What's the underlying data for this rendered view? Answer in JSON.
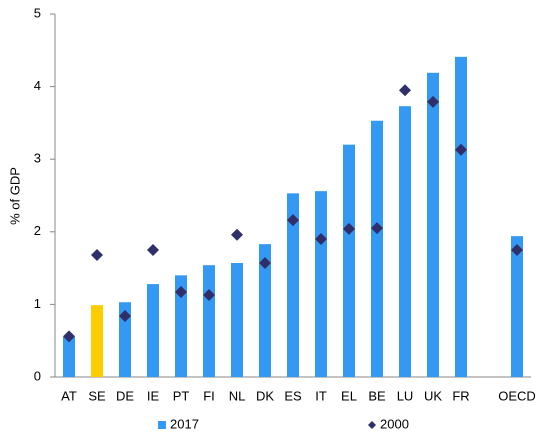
{
  "chart_data": {
    "type": "bar-dot",
    "y_label": "% of GDP",
    "categories": [
      "AT",
      "SE",
      "DE",
      "IE",
      "PT",
      "FI",
      "NL",
      "DK",
      "ES",
      "IT",
      "EL",
      "BE",
      "LU",
      "UK",
      "FR",
      null,
      "OECD"
    ],
    "series": [
      {
        "name": "2017",
        "type": "bar",
        "color": "#3399f3",
        "colors": [
          "#3399f3",
          "#ffcc00",
          "#3399f3",
          "#3399f3",
          "#3399f3",
          "#3399f3",
          "#3399f3",
          "#3399f3",
          "#3399f3",
          "#3399f3",
          "#3399f3",
          "#3399f3",
          "#3399f3",
          "#3399f3",
          "#3399f3",
          null,
          "#3399f3"
        ],
        "values": [
          0.55,
          0.99,
          1.03,
          1.28,
          1.4,
          1.54,
          1.57,
          1.83,
          2.53,
          2.56,
          3.2,
          3.53,
          3.73,
          4.19,
          4.41,
          null,
          1.94
        ]
      },
      {
        "name": "2000",
        "type": "diamond",
        "color": "#2e2f6b",
        "values": [
          0.56,
          1.68,
          0.84,
          1.75,
          1.17,
          1.13,
          1.96,
          1.57,
          2.16,
          1.9,
          2.04,
          2.05,
          3.95,
          3.79,
          3.13,
          null,
          1.75
        ]
      }
    ],
    "ylim": [
      0,
      5
    ],
    "yticks": [
      0,
      1,
      2,
      3,
      4,
      5
    ],
    "grid": false
  }
}
